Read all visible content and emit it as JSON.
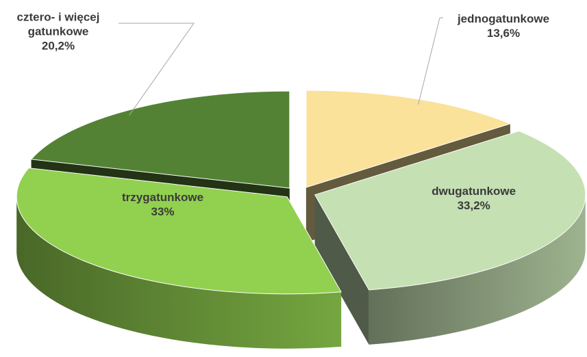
{
  "chart_data": {
    "type": "pie",
    "categories": [
      "jednogatunkowe",
      "dwugatunkowe",
      "trzygatunkowe",
      "cztero- i więcej gatunkowe"
    ],
    "values": [
      13.6,
      33.2,
      33,
      20.2
    ],
    "value_labels": [
      "13,6%",
      "33,2%",
      "33%",
      "20,2%"
    ],
    "colors": [
      "#fbe29a",
      "#c5e0b3",
      "#92d050",
      "#548235"
    ]
  }
}
